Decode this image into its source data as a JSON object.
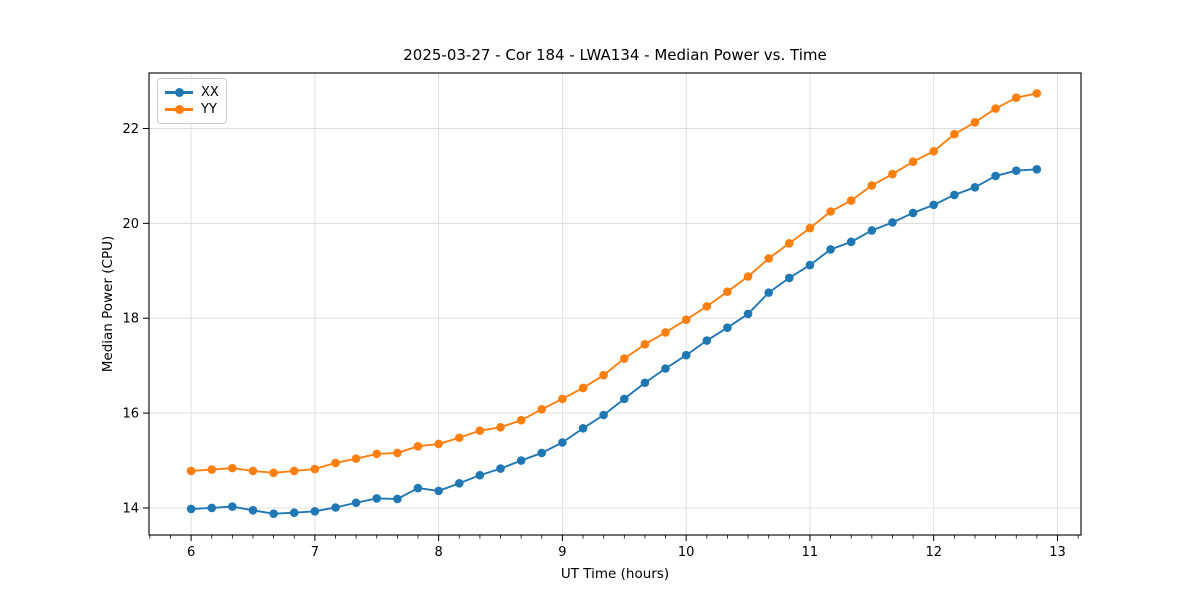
{
  "chart_data": {
    "type": "line",
    "title": "2025-03-27 - Cor 184 - LWA134 - Median Power vs. Time",
    "xlabel": "UT Time (hours)",
    "ylabel": "Median Power (CPU)",
    "xlim": [
      5.66,
      13.19
    ],
    "ylim": [
      13.43,
      23.17
    ],
    "xticks": [
      6,
      7,
      8,
      9,
      10,
      11,
      12,
      13
    ],
    "yticks": [
      14,
      16,
      18,
      20,
      22
    ],
    "x_minor_step": 0.16667,
    "grid": true,
    "legend_position": "upper-left",
    "grid_color": "#dcdcdc",
    "x": [
      6.0,
      6.167,
      6.333,
      6.5,
      6.667,
      6.833,
      7.0,
      7.167,
      7.333,
      7.5,
      7.667,
      7.833,
      8.0,
      8.167,
      8.333,
      8.5,
      8.667,
      8.833,
      9.0,
      9.167,
      9.333,
      9.5,
      9.667,
      9.833,
      10.0,
      10.167,
      10.333,
      10.5,
      10.667,
      10.833,
      11.0,
      11.167,
      11.333,
      11.5,
      11.667,
      11.833,
      12.0,
      12.167,
      12.333,
      12.5,
      12.667,
      12.833
    ],
    "series": [
      {
        "name": "XX",
        "color": "#1f77b4",
        "values": [
          13.98,
          14.0,
          14.03,
          13.95,
          13.88,
          13.9,
          13.93,
          14.01,
          14.11,
          14.2,
          14.19,
          14.42,
          14.36,
          14.52,
          14.69,
          14.83,
          15.0,
          15.16,
          15.38,
          15.68,
          15.96,
          16.3,
          16.64,
          16.94,
          17.22,
          17.53,
          17.8,
          18.09,
          18.54,
          18.85,
          19.12,
          19.45,
          19.61,
          19.85,
          20.02,
          20.22,
          20.39,
          20.6,
          20.76,
          21.0,
          21.11,
          21.14
        ]
      },
      {
        "name": "YY",
        "color": "#ff7f0e",
        "values": [
          14.78,
          14.81,
          14.84,
          14.78,
          14.74,
          14.78,
          14.82,
          14.95,
          15.04,
          15.14,
          15.16,
          15.3,
          15.35,
          15.48,
          15.63,
          15.7,
          15.85,
          16.08,
          16.3,
          16.53,
          16.8,
          17.15,
          17.45,
          17.7,
          17.97,
          18.25,
          18.56,
          18.88,
          19.26,
          19.58,
          19.9,
          20.25,
          20.48,
          20.8,
          21.04,
          21.3,
          21.52,
          21.88,
          22.13,
          22.42,
          22.65,
          22.74
        ]
      }
    ]
  }
}
